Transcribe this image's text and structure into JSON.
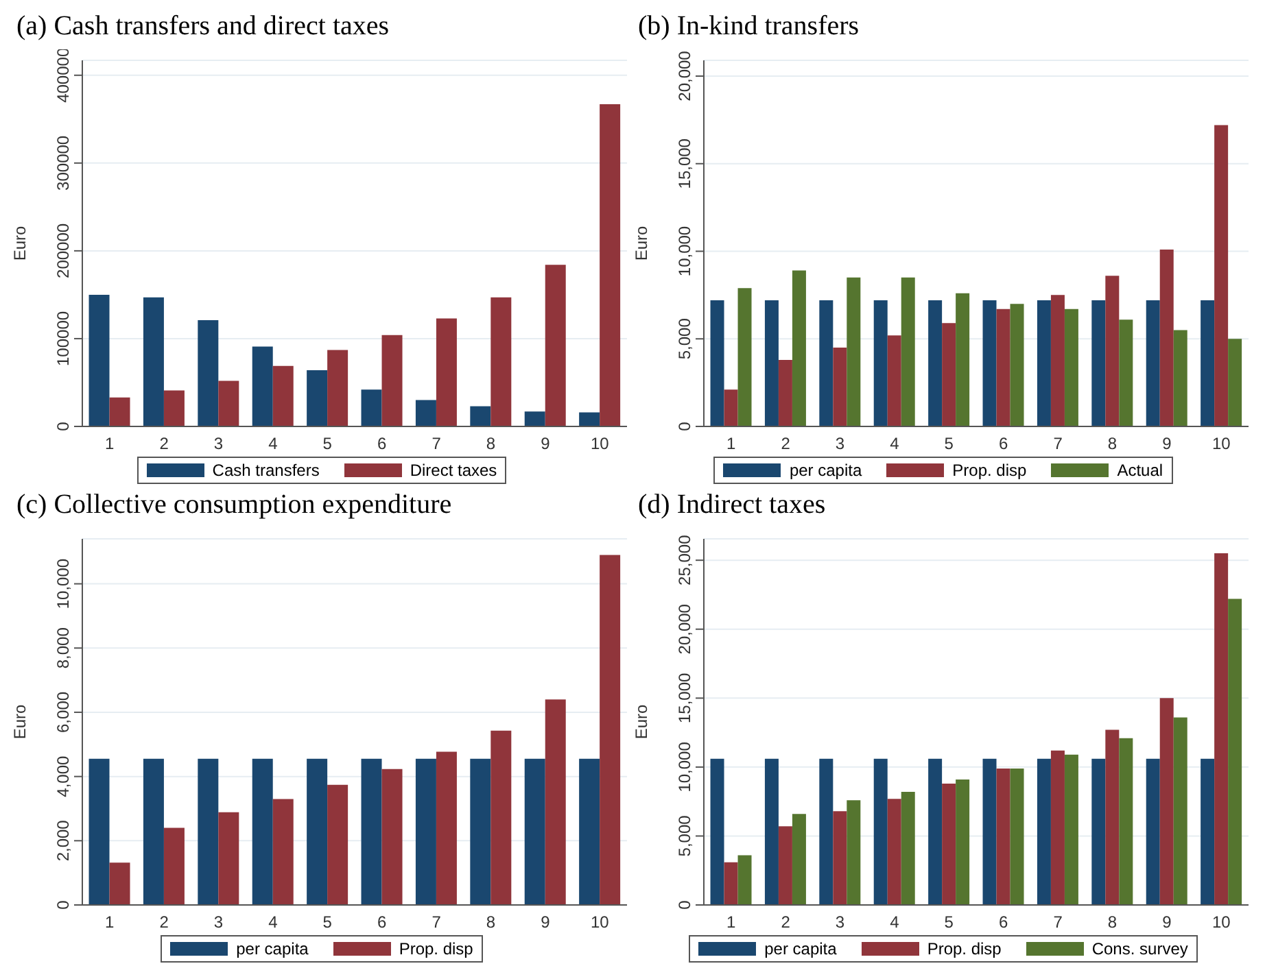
{
  "chart_data": [
    {
      "type": "bar",
      "title": "(a) Cash transfers and direct taxes",
      "ylabel": "Euro",
      "categories": [
        "1",
        "2",
        "3",
        "4",
        "5",
        "6",
        "7",
        "8",
        "9",
        "10"
      ],
      "series": [
        {
          "name": "Cash transfers",
          "color": "#1a476f",
          "values": [
            150000,
            147000,
            121000,
            91000,
            64000,
            42000,
            30000,
            23000,
            17000,
            16000
          ]
        },
        {
          "name": "Direct taxes",
          "color": "#90353b",
          "values": [
            33000,
            41000,
            52000,
            69000,
            87000,
            104000,
            123000,
            147000,
            184000,
            367000
          ]
        }
      ],
      "ylim": [
        0,
        417000
      ],
      "yticks": [
        0,
        100000,
        200000,
        300000,
        400000
      ],
      "grid": "y",
      "legend": "bottom"
    },
    {
      "type": "bar",
      "title": "(b) In-kind transfers",
      "ylabel": "Euro",
      "categories": [
        "1",
        "2",
        "3",
        "4",
        "5",
        "6",
        "7",
        "8",
        "9",
        "10"
      ],
      "series": [
        {
          "name": "per capita",
          "color": "#1a476f",
          "values": [
            7200,
            7200,
            7200,
            7200,
            7200,
            7200,
            7200,
            7200,
            7200,
            7200
          ]
        },
        {
          "name": "Prop. disp",
          "color": "#90353b",
          "values": [
            2100,
            3800,
            4500,
            5200,
            5900,
            6700,
            7500,
            8600,
            10100,
            17200
          ]
        },
        {
          "name": "Actual",
          "color": "#55752f",
          "values": [
            7900,
            8900,
            8500,
            8500,
            7600,
            7000,
            6700,
            6100,
            5500,
            5000
          ]
        }
      ],
      "ylim": [
        0,
        20900
      ],
      "yticks": [
        0,
        {
          "value": 5000,
          "label": "5,000"
        },
        {
          "value": 10000,
          "label": "10,000"
        },
        {
          "value": 15000,
          "label": "15,000"
        },
        {
          "value": 20000,
          "label": "20,000"
        }
      ],
      "grid": "y",
      "legend": "bottom"
    },
    {
      "type": "bar",
      "title": "(c) Collective consumption expenditure",
      "ylabel": "Euro",
      "categories": [
        "1",
        "2",
        "3",
        "4",
        "5",
        "6",
        "7",
        "8",
        "9",
        "10"
      ],
      "series": [
        {
          "name": "per capita",
          "color": "#1a476f",
          "values": [
            4550,
            4550,
            4550,
            4550,
            4550,
            4550,
            4550,
            4550,
            4550,
            4550
          ]
        },
        {
          "name": "Prop. disp",
          "color": "#90353b",
          "values": [
            1320,
            2400,
            2890,
            3300,
            3740,
            4230,
            4770,
            5430,
            6400,
            10900
          ]
        }
      ],
      "ylim": [
        0,
        11400
      ],
      "yticks": [
        0,
        {
          "value": 2000,
          "label": "2,000"
        },
        {
          "value": 4000,
          "label": "4,000"
        },
        {
          "value": 6000,
          "label": "6,000"
        },
        {
          "value": 8000,
          "label": "8,000"
        },
        {
          "value": 10000,
          "label": "10,000"
        }
      ],
      "grid": "y",
      "legend": "bottom"
    },
    {
      "type": "bar",
      "title": "(d) Indirect taxes",
      "ylabel": "Euro",
      "categories": [
        "1",
        "2",
        "3",
        "4",
        "5",
        "6",
        "7",
        "8",
        "9",
        "10"
      ],
      "series": [
        {
          "name": "per capita",
          "color": "#1a476f",
          "values": [
            10600,
            10600,
            10600,
            10600,
            10600,
            10600,
            10600,
            10600,
            10600,
            10600
          ]
        },
        {
          "name": "Prop. disp",
          "color": "#90353b",
          "values": [
            3100,
            5700,
            6800,
            7700,
            8800,
            9900,
            11200,
            12700,
            15000,
            25500
          ]
        },
        {
          "name": "Cons. survey",
          "color": "#55752f",
          "values": [
            3600,
            6600,
            7600,
            8200,
            9100,
            9900,
            10900,
            12100,
            13600,
            22200
          ]
        }
      ],
      "ylim": [
        0,
        26550
      ],
      "yticks": [
        0,
        {
          "value": 5000,
          "label": "5,000"
        },
        {
          "value": 10000,
          "label": "10,000"
        },
        {
          "value": 15000,
          "label": "15,000"
        },
        {
          "value": 20000,
          "label": "20,000"
        },
        {
          "value": 25000,
          "label": "25,000"
        }
      ],
      "grid": "y",
      "legend": "bottom"
    }
  ]
}
